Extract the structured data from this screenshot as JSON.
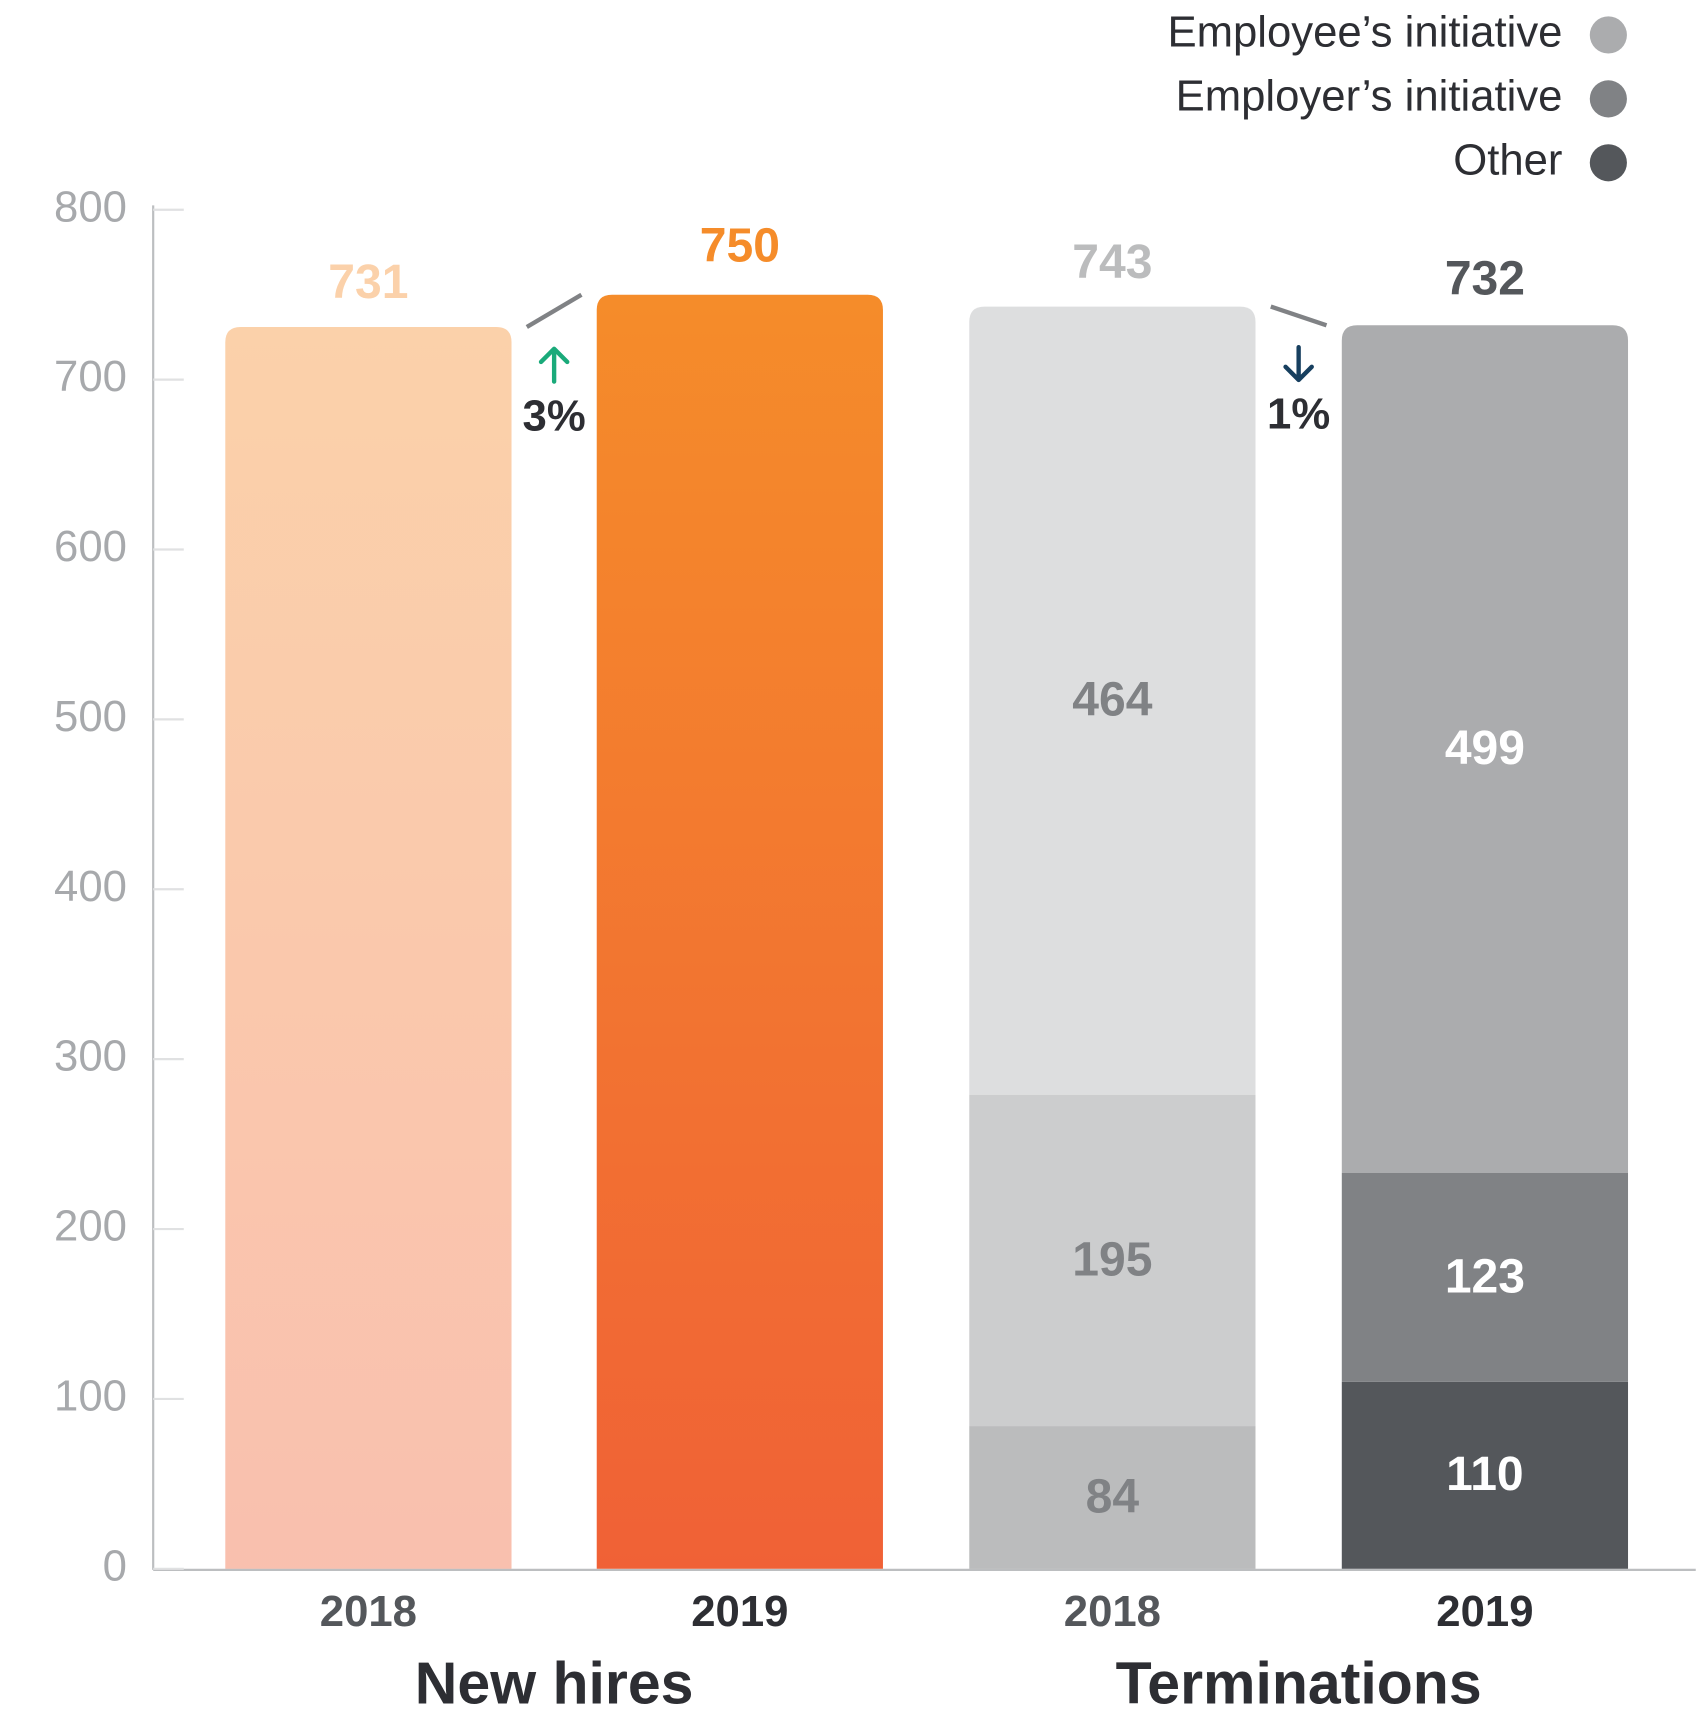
{
  "chart_data": {
    "type": "bar",
    "ylim": [
      0,
      800
    ],
    "yticks": [
      0,
      100,
      200,
      300,
      400,
      500,
      600,
      700,
      800
    ],
    "category_opacity": [
      0.4,
      1
    ],
    "groups": [
      {
        "name": "New hires",
        "type": "bar",
        "categories": [
          "2018",
          "2019"
        ],
        "values": [
          731,
          750
        ],
        "color": "#f58c2a",
        "color_bottom": "#f06136",
        "change": {
          "value": 3,
          "label": "3%",
          "direction": "up",
          "color": "#1aaa7a"
        }
      },
      {
        "name": "Terminations",
        "type": "stacked_bar",
        "categories": [
          "2018",
          "2019"
        ],
        "series": [
          {
            "name": "Employee’s initiative",
            "color": "#abacae",
            "values": [
              464,
              499
            ]
          },
          {
            "name": "Employer’s initiative",
            "color": "#808285",
            "values": [
              195,
              123
            ]
          },
          {
            "name": "Other",
            "color": "#54575b",
            "values": [
              84,
              110
            ]
          }
        ],
        "totals": [
          743,
          732
        ],
        "change": {
          "value": 1,
          "label": "1%",
          "direction": "down",
          "color": "#173f5f"
        }
      }
    ]
  }
}
